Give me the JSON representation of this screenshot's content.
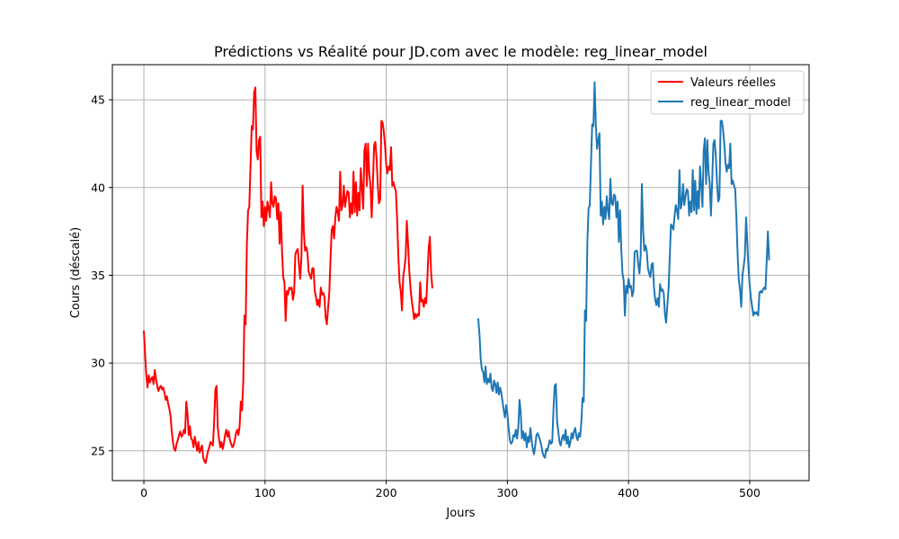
{
  "chart_data": {
    "type": "line",
    "title": "Prédictions vs Réalité pour JD.com avec le modèle: reg_linear_model",
    "xlabel": "Jours",
    "ylabel": "Cours (déscalé)",
    "xlim": [
      -26,
      549
    ],
    "ylim": [
      23.3,
      47.0
    ],
    "xticks": [
      0,
      100,
      200,
      300,
      400,
      500
    ],
    "yticks": [
      25,
      30,
      35,
      40,
      45
    ],
    "grid": true,
    "legend_position": "top-right",
    "series": [
      {
        "name": "Valeurs réelles",
        "color": "#ff0000",
        "x_start": 0,
        "values": [
          31.8,
          30.5,
          29.3,
          28.6,
          29.3,
          28.9,
          29.1,
          29.2,
          28.8,
          29.6,
          29.1,
          28.7,
          28.4,
          28.6,
          28.7,
          28.5,
          28.6,
          28.3,
          27.9,
          28.1,
          27.7,
          27.4,
          27.0,
          26.1,
          25.5,
          25.1,
          25.0,
          25.4,
          25.6,
          25.9,
          26.1,
          25.8,
          25.9,
          26.2,
          26.0,
          27.8,
          27.1,
          25.9,
          26.4,
          25.7,
          25.6,
          25.2,
          25.8,
          25.4,
          25.0,
          25.5,
          24.9,
          25.1,
          25.3,
          24.6,
          24.4,
          24.3,
          24.7,
          25.0,
          25.2,
          25.5,
          25.4,
          25.3,
          26.7,
          28.5,
          28.7,
          26.3,
          25.7,
          25.2,
          25.5,
          25.1,
          25.4,
          25.9,
          26.2,
          25.8,
          26.1,
          25.6,
          25.4,
          25.2,
          25.3,
          25.6,
          26.0,
          26.2,
          25.9,
          26.4,
          27.8,
          27.3,
          28.9,
          32.7,
          32.2,
          36.8,
          38.7,
          38.9,
          41.2,
          43.5,
          43.3,
          45.4,
          45.7,
          42.1,
          41.6,
          42.7,
          42.9,
          38.3,
          39.2,
          37.8,
          38.9,
          38.1,
          39.2,
          38.8,
          38.3,
          40.3,
          39.1,
          38.9,
          39.5,
          39.4,
          38.2,
          39.1,
          36.8,
          38.6,
          36.4,
          34.9,
          34.6,
          32.4,
          34.1,
          33.9,
          34.3,
          34.2,
          34.3,
          33.6,
          34.0,
          36.2,
          36.4,
          36.5,
          35.6,
          34.8,
          36.0,
          40.1,
          37.5,
          36.4,
          36.6,
          36.3,
          35.2,
          35.0,
          34.8,
          35.4,
          35.4,
          34.1,
          33.8,
          33.3,
          33.6,
          33.2,
          34.3,
          33.9,
          34.0,
          33.8,
          32.6,
          32.2,
          33.1,
          34.0,
          35.9,
          37.6,
          37.8,
          37.1,
          38.3,
          38.9,
          38.6,
          38.1,
          40.9,
          38.7,
          39.0,
          40.1,
          38.9,
          39.4,
          39.8,
          39.7,
          38.3,
          39.1,
          38.5,
          40.9,
          38.6,
          40.3,
          38.4,
          39.7,
          38.7,
          41.1,
          40.0,
          38.8,
          42.1,
          42.5,
          40.1,
          42.5,
          40.8,
          40.1,
          38.3,
          40.2,
          42.4,
          42.6,
          41.7,
          40.2,
          39.1,
          39.3,
          43.8,
          43.7,
          43.2,
          42.4,
          41.3,
          40.8,
          41.2,
          41.0,
          42.3,
          40.1,
          40.3,
          40.0,
          39.8,
          38.2,
          36.1,
          34.6,
          34.1,
          33.0,
          34.9,
          35.4,
          36.0,
          38.1,
          36.8,
          35.3,
          34.3,
          33.6,
          33.1,
          32.5,
          32.8,
          32.6,
          32.8,
          32.7,
          34.6,
          33.5,
          33.6,
          33.2,
          33.7,
          33.4,
          34.9,
          36.5,
          37.2,
          35.2,
          34.3
        ]
      },
      {
        "name": "reg_linear_model",
        "color": "#1f77b4",
        "x_start": 276,
        "values": [
          32.5,
          31.6,
          30.2,
          29.6,
          29.5,
          28.9,
          29.8,
          28.8,
          29.1,
          28.9,
          29.4,
          28.6,
          28.4,
          29.0,
          28.8,
          28.3,
          28.9,
          28.2,
          28.6,
          28.3,
          27.8,
          27.3,
          26.9,
          27.6,
          27.1,
          26.3,
          25.6,
          25.4,
          25.5,
          25.9,
          25.8,
          26.2,
          25.7,
          26.3,
          27.9,
          27.2,
          25.7,
          26.1,
          25.6,
          26.0,
          25.2,
          25.8,
          25.5,
          26.3,
          25.6,
          25.1,
          24.8,
          25.3,
          25.9,
          26.0,
          25.8,
          25.6,
          25.3,
          24.9,
          24.7,
          24.6,
          25.1,
          25.0,
          25.3,
          25.6,
          25.4,
          25.5,
          27.3,
          28.7,
          28.8,
          26.7,
          26.1,
          25.5,
          25.3,
          25.7,
          25.9,
          25.6,
          26.2,
          25.4,
          25.8,
          25.2,
          25.5,
          26.0,
          25.7,
          26.1,
          26.3,
          25.8,
          25.6,
          26.0,
          25.8,
          26.6,
          28.0,
          27.8,
          33.0,
          32.4,
          36.9,
          38.8,
          39.0,
          41.4,
          43.6,
          43.5,
          46.0,
          43.6,
          42.2,
          42.7,
          43.1,
          38.4,
          39.2,
          37.9,
          38.9,
          38.2,
          39.5,
          38.7,
          38.2,
          40.5,
          39.1,
          39.0,
          39.6,
          39.5,
          38.3,
          39.2,
          36.9,
          38.7,
          36.5,
          35.1,
          34.7,
          32.7,
          34.4,
          34.0,
          34.8,
          34.3,
          34.4,
          33.8,
          34.1,
          36.3,
          36.4,
          36.4,
          35.6,
          35.1,
          36.1,
          40.2,
          37.6,
          36.4,
          36.7,
          36.4,
          35.4,
          35.1,
          34.9,
          35.6,
          35.7,
          34.3,
          33.6,
          33.3,
          33.7,
          33.2,
          34.5,
          34.1,
          34.2,
          34.0,
          32.8,
          32.3,
          33.3,
          34.2,
          36.0,
          37.9,
          37.8,
          37.6,
          38.4,
          39.0,
          38.7,
          38.2,
          41.0,
          38.8,
          39.1,
          40.2,
          39.0,
          39.5,
          39.9,
          39.8,
          38.4,
          39.2,
          38.6,
          41.0,
          38.7,
          40.4,
          38.5,
          39.8,
          38.8,
          41.2,
          40.1,
          38.9,
          42.1,
          42.8,
          40.2,
          42.7,
          40.9,
          40.2,
          38.4,
          40.3,
          42.5,
          42.7,
          41.8,
          40.3,
          39.2,
          39.4,
          43.8,
          43.8,
          43.3,
          42.5,
          41.4,
          40.9,
          41.3,
          41.1,
          42.5,
          40.2,
          40.4,
          40.1,
          39.9,
          38.3,
          36.2,
          34.7,
          34.2,
          33.2,
          35.0,
          35.5,
          36.1,
          38.3,
          36.9,
          35.4,
          34.4,
          33.7,
          33.2,
          32.7,
          32.9,
          32.8,
          32.9,
          32.7,
          34.0,
          34.1,
          34.0,
          34.2,
          34.3,
          34.2,
          35.8,
          37.5,
          35.9
        ]
      }
    ]
  }
}
